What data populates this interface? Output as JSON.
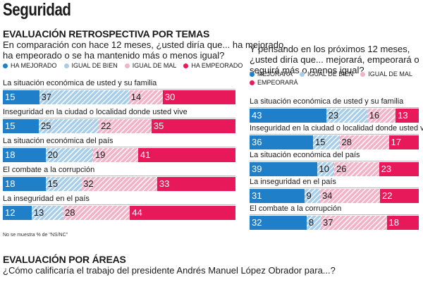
{
  "header": {
    "title": "Seguridad"
  },
  "retro": {
    "title": "EVALUACIÓN RETROSPECTIVA POR TEMAS",
    "question_line1": "En comparación con hace 12 meses, ¿usted diría que... ha mejorado,",
    "question_line2": "ha empeorado o se ha mantenido más o menos igual?",
    "legend": [
      "HA MEJORADO",
      "IGUAL DE BIEN",
      "IGUAL DE MAL",
      "HA EMPEORADO"
    ]
  },
  "prosp": {
    "question_line1": "Y pensando en los próximos 12 meses,",
    "question_line2": "¿usted diría que... mejorará, empeorará o",
    "question_line3": "seguirá más o menos igual?",
    "legend": [
      "MEJORARÁ",
      "IGUAL DE BIEN",
      "IGUAL DE MAL",
      "EMPEORARÁ"
    ]
  },
  "footnote": "No se muestra % de \"NS/NC\"",
  "areas": {
    "title": "EVALUACIÓN POR ÁREAS",
    "question": "¿Cómo calificaría el trabajo del presidente Andrés Manuel López Obrador para...?"
  },
  "colors": {
    "mejorado": "#1f7fc9",
    "igual_bien": "#a8cde9",
    "igual_mal": "#f2b3c8",
    "empeorado": "#e8195a"
  },
  "chart_data": [
    {
      "type": "bar",
      "stacked": true,
      "orientation": "horizontal",
      "categories": [
        "La situación económica de usted y su familia",
        "Inseguridad en la ciudad o localidad donde usted vive",
        "La situación económica del país",
        "El combate a la corrupción",
        "La inseguridad en el país"
      ],
      "series": [
        {
          "name": "HA MEJORADO",
          "values": [
            15,
            15,
            18,
            18,
            12
          ]
        },
        {
          "name": "IGUAL DE BIEN",
          "values": [
            37,
            25,
            20,
            15,
            13
          ]
        },
        {
          "name": "IGUAL DE MAL",
          "values": [
            14,
            22,
            19,
            32,
            28
          ]
        },
        {
          "name": "HA EMPEORADO",
          "values": [
            30,
            35,
            41,
            33,
            44
          ]
        }
      ]
    },
    {
      "type": "bar",
      "stacked": true,
      "orientation": "horizontal",
      "categories": [
        "La situación económica de usted y su familia",
        "Inseguridad en la ciudad o localidad donde usted vive",
        "La situación económica del país",
        "La inseguridad en el país",
        "El combate a la corrupción"
      ],
      "series": [
        {
          "name": "MEJORARÁ",
          "values": [
            43,
            36,
            39,
            31,
            32
          ]
        },
        {
          "name": "IGUAL DE BIEN",
          "values": [
            23,
            15,
            10,
            9,
            8
          ]
        },
        {
          "name": "IGUAL DE MAL",
          "values": [
            16,
            28,
            26,
            34,
            37
          ]
        },
        {
          "name": "EMPEORARÁ",
          "values": [
            13,
            17,
            23,
            22,
            18
          ]
        }
      ]
    }
  ]
}
